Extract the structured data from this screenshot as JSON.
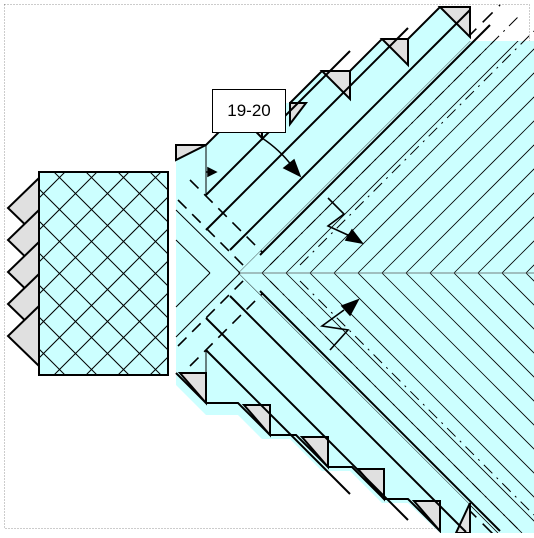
{
  "diagram": {
    "step_label": "19-20"
  },
  "colors": {
    "paper_front": "#ccffff",
    "paper_back": "#e0e0e0",
    "crease": "#000000",
    "frame": "#999999"
  }
}
